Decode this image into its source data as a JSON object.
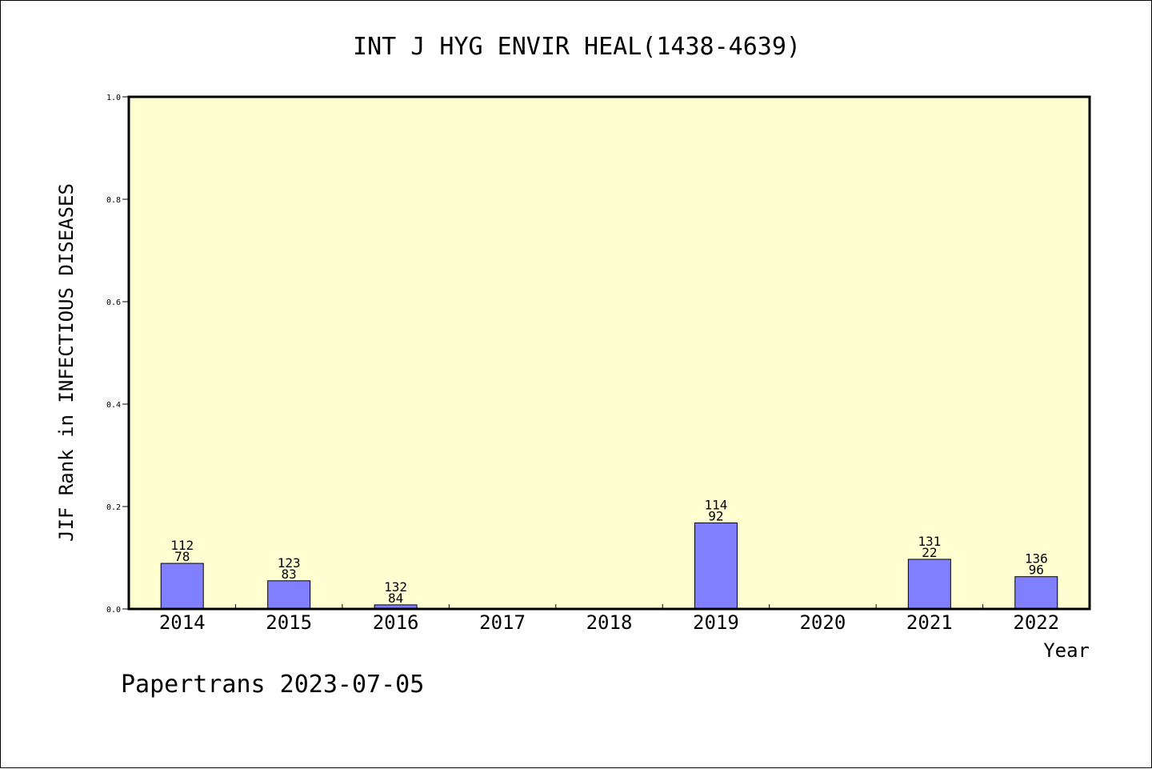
{
  "chart_data": {
    "type": "bar",
    "title": "INT J HYG ENVIR HEAL(1438-4639)",
    "xlabel": "Year",
    "ylabel": "JIF Rank in INFECTIOUS DISEASES",
    "ylim": [
      0,
      1.0
    ],
    "yticks": [
      "0.0",
      "0.2",
      "0.4",
      "0.6",
      "0.8",
      "1.0"
    ],
    "categories": [
      "2014",
      "2015",
      "2016",
      "2017",
      "2018",
      "2019",
      "2020",
      "2021",
      "2022"
    ],
    "values": [
      0.089,
      0.055,
      0.008,
      null,
      null,
      0.168,
      null,
      0.097,
      0.063
    ],
    "label_top": [
      "112",
      "123",
      "132",
      "",
      "",
      "114",
      "",
      "131",
      "136"
    ],
    "label_bottom": [
      "78",
      "83",
      "84",
      "",
      "",
      "92",
      "",
      "22",
      "96"
    ],
    "grid": false,
    "legend": "none",
    "colors": {
      "plot_background": "#ffffd2",
      "bar_fill": "#8080ff",
      "axis": "#000000"
    }
  },
  "footer": {
    "watermark": "Papertrans 2023-07-05"
  }
}
